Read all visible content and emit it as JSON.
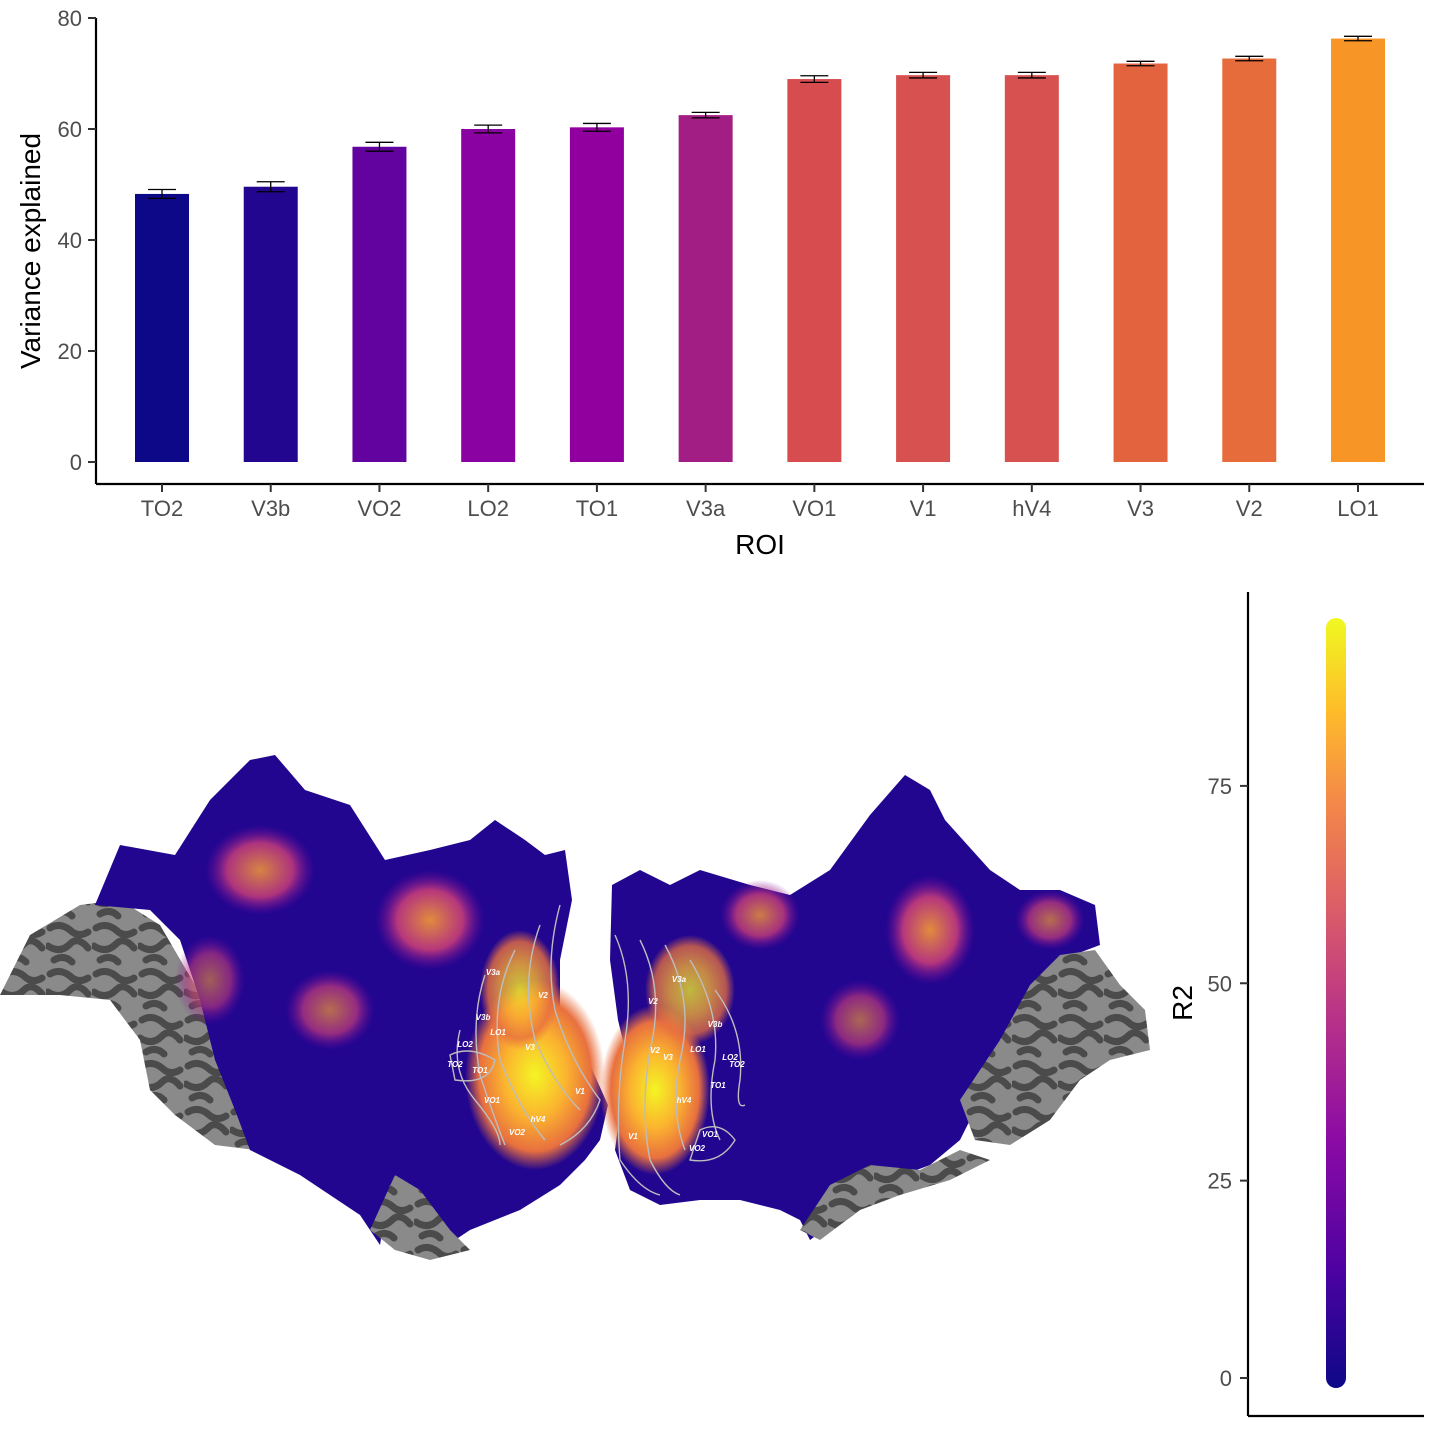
{
  "chart_data": [
    {
      "type": "bar",
      "xlabel": "ROI",
      "ylabel": "Variance explained",
      "ylim": [
        0,
        80
      ],
      "yticks": [
        0,
        20,
        40,
        60,
        80
      ],
      "categories": [
        "TO2",
        "V3b",
        "VO2",
        "LO2",
        "TO1",
        "V3a",
        "VO1",
        "V1",
        "hV4",
        "V3",
        "V2",
        "LO1"
      ],
      "values": [
        48.3,
        49.6,
        56.8,
        60.0,
        60.3,
        62.5,
        69.0,
        69.7,
        69.7,
        71.8,
        72.7,
        76.3
      ],
      "errors": [
        0.8,
        0.9,
        0.8,
        0.7,
        0.7,
        0.5,
        0.6,
        0.5,
        0.5,
        0.4,
        0.4,
        0.4
      ],
      "colors": [
        "#0d0887",
        "#220690",
        "#63039f",
        "#8b02a3",
        "#91009f",
        "#a21d84",
        "#d64c4f",
        "#d65150",
        "#d65150",
        "#e3633f",
        "#e66d3b",
        "#f89527"
      ],
      "grid": false,
      "legend": "none"
    },
    {
      "type": "heatmap",
      "description_hidden": true,
      "colorbar": {
        "title": "R2",
        "range": [
          0,
          95
        ],
        "ticks": [
          0,
          25,
          50,
          75
        ],
        "colormap": [
          "#0d0887",
          "#5b02a3",
          "#9a179b",
          "#cb4678",
          "#eb7852",
          "#fbb32f",
          "#eff821"
        ]
      },
      "roi_labels_left": [
        "V3a",
        "V2",
        "V3b",
        "LO1",
        "LO2",
        "V3",
        "TO2",
        "TO1",
        "VO1",
        "V1",
        "hV4",
        "VO2"
      ],
      "roi_labels_right": [
        "V3a",
        "V2",
        "V3b",
        "LO1",
        "V2",
        "V3",
        "LO2",
        "TO2",
        "TO1",
        "hV4",
        "V1",
        "VO1",
        "VO2"
      ]
    }
  ]
}
